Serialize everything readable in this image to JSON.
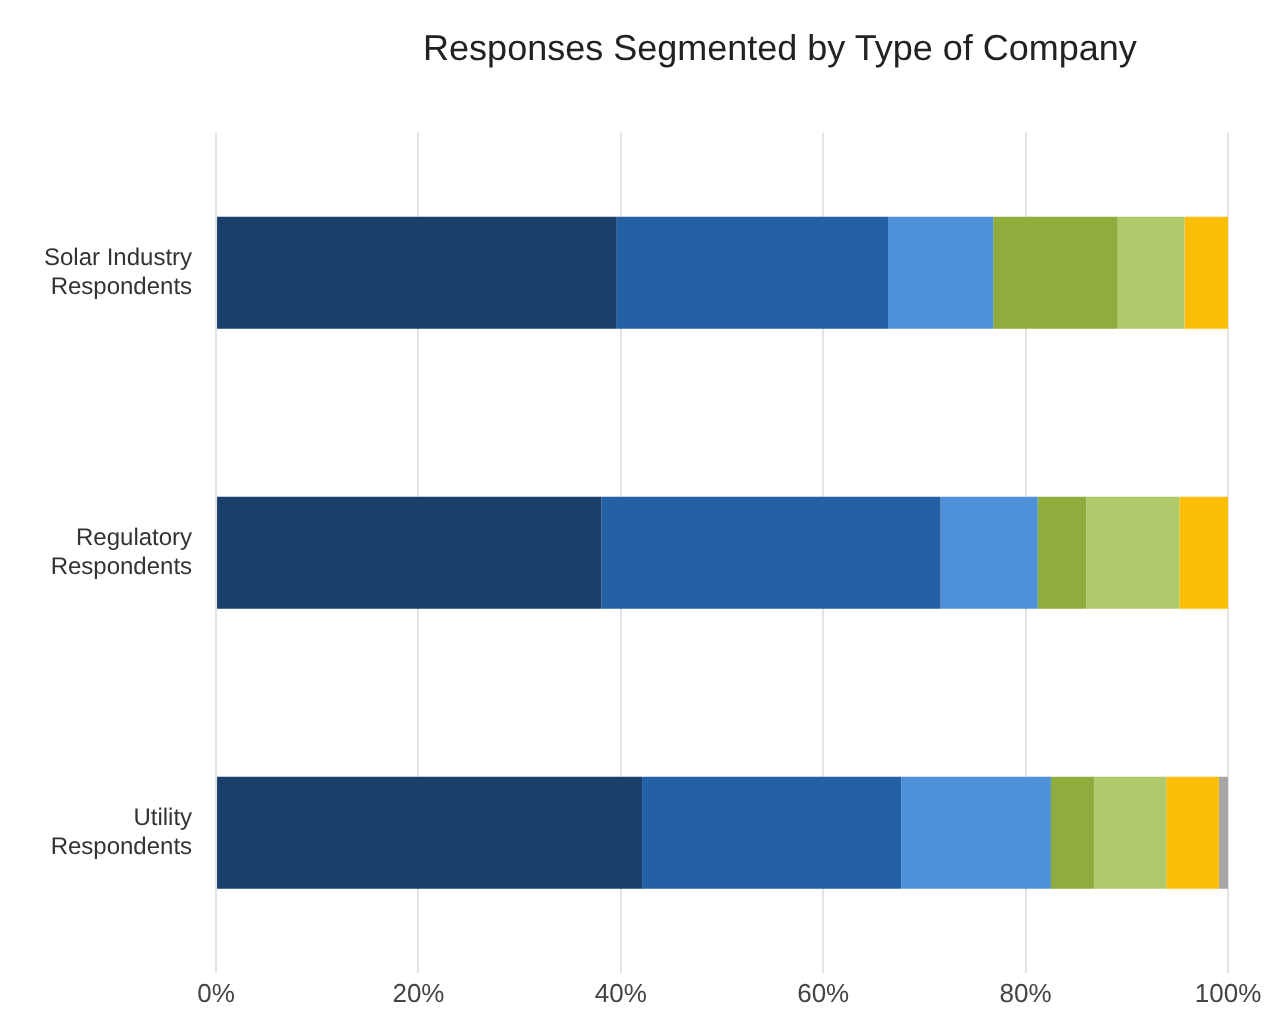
{
  "chart_data": {
    "type": "bar",
    "orientation": "horizontal",
    "stacked": true,
    "title": "Responses Segmented by Type of Company",
    "categories": [
      "Solar Industry Respondents",
      "Regulatory Respondents",
      "Utility Respondents"
    ],
    "series": [
      {
        "color": "#1a3f6b",
        "values": [
          39.6,
          38.1,
          42.1
        ]
      },
      {
        "color": "#2360a5",
        "values": [
          26.8,
          33.5,
          25.6
        ]
      },
      {
        "color": "#4f91d8",
        "values": [
          10.4,
          9.6,
          14.8
        ]
      },
      {
        "color": "#8fad3d",
        "values": [
          12.3,
          4.8,
          4.3
        ]
      },
      {
        "color": "#b0c96b",
        "values": [
          6.6,
          9.2,
          7.1
        ]
      },
      {
        "color": "#fcbe05",
        "values": [
          4.3,
          4.8,
          5.2
        ]
      },
      {
        "color": "#a6a6a6",
        "values": [
          0,
          0,
          0.9
        ]
      }
    ],
    "xlim": [
      0,
      100
    ],
    "xticks": [
      {
        "value": 0,
        "label": "0%"
      },
      {
        "value": 20,
        "label": "20%"
      },
      {
        "value": 40,
        "label": "40%"
      },
      {
        "value": 60,
        "label": "60%"
      },
      {
        "value": 80,
        "label": "80%"
      },
      {
        "value": 100,
        "label": "100%"
      }
    ],
    "grid": "x",
    "legend": false
  }
}
